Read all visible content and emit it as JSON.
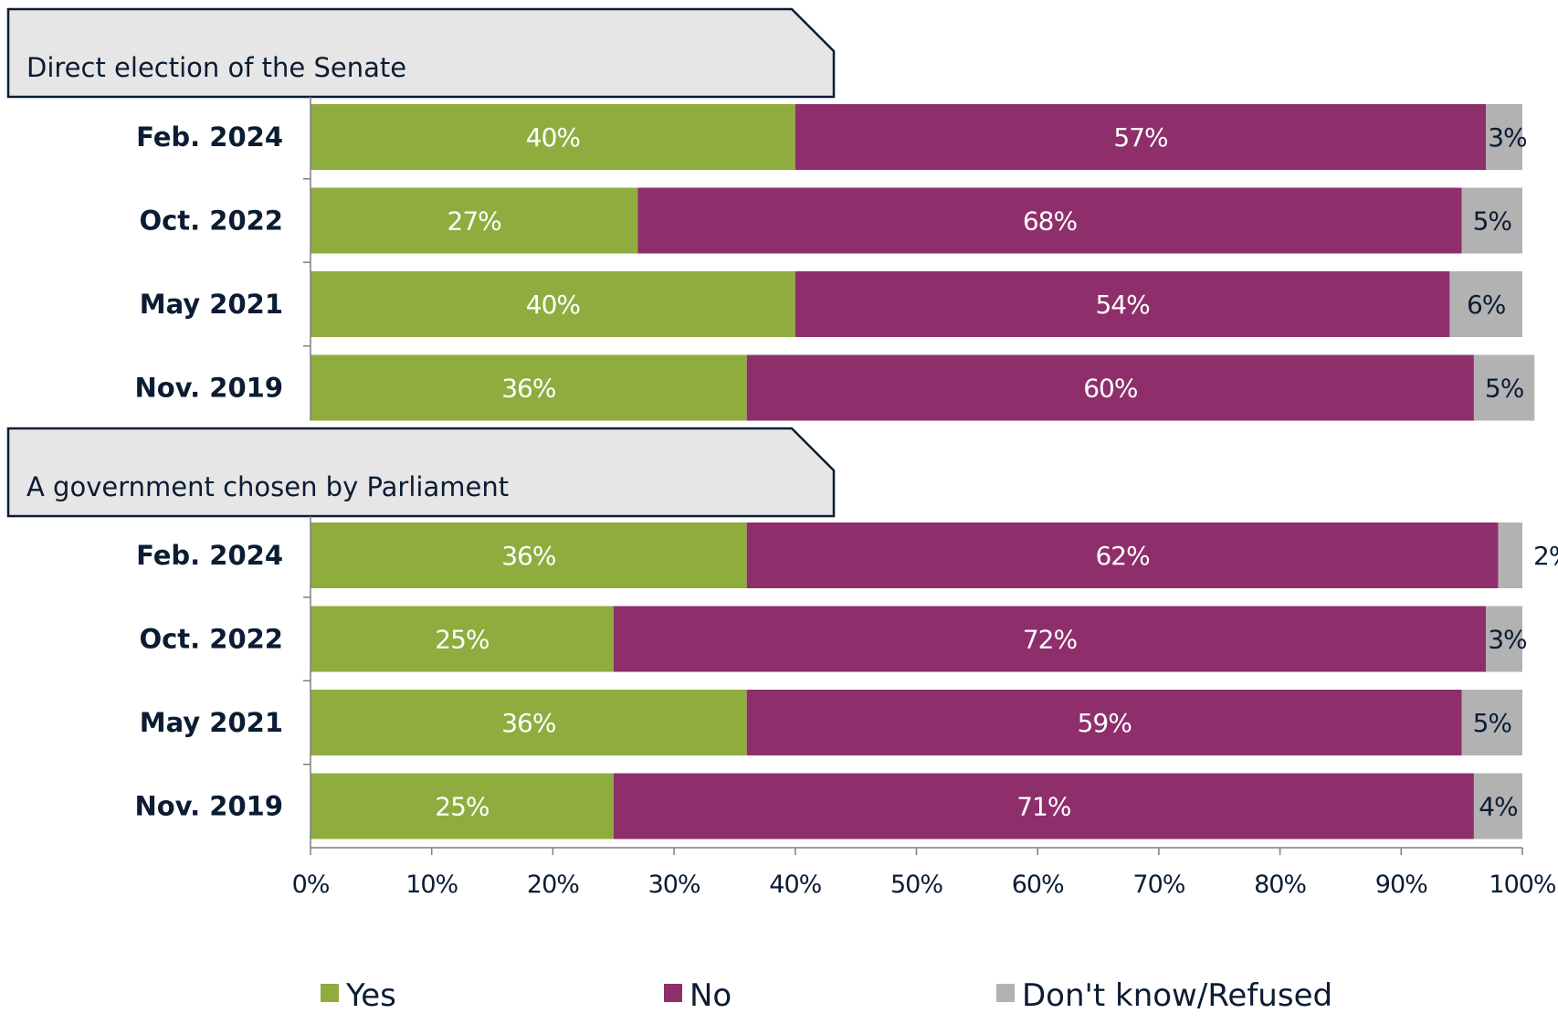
{
  "chart_data": {
    "type": "bar",
    "orientation": "horizontal",
    "stacked": true,
    "groups": [
      {
        "title": "Direct election of the Senate",
        "categories": [
          "Feb. 2024",
          "Oct. 2022",
          "May 2021",
          "Nov. 2019"
        ],
        "series": [
          {
            "name": "Yes",
            "values": [
              40,
              27,
              40,
              36
            ]
          },
          {
            "name": "No",
            "values": [
              57,
              68,
              54,
              60
            ]
          },
          {
            "name": "Don't know/Refused",
            "values": [
              3,
              5,
              6,
              5
            ]
          }
        ]
      },
      {
        "title": "A government chosen by Parliament",
        "categories": [
          "Feb. 2024",
          "Oct. 2022",
          "May 2021",
          "Nov. 2019"
        ],
        "series": [
          {
            "name": "Yes",
            "values": [
              36,
              25,
              36,
              25
            ]
          },
          {
            "name": "No",
            "values": [
              62,
              72,
              59,
              71
            ]
          },
          {
            "name": "Don't know/Refused",
            "values": [
              2,
              3,
              5,
              4
            ]
          }
        ]
      }
    ],
    "x_ticks": [
      "0%",
      "10%",
      "20%",
      "30%",
      "40%",
      "50%",
      "60%",
      "70%",
      "80%",
      "90%",
      "100%"
    ],
    "xlim": [
      0,
      100
    ],
    "value_suffix": "%",
    "legend": {
      "position": "bottom",
      "items": [
        "Yes",
        "No",
        "Don't know/Refused"
      ]
    },
    "colors": {
      "Yes": "#8fac3f",
      "No": "#8e2f6c",
      "Don't know/Refused": "#b2b2b2"
    },
    "label_colors": {
      "Yes": "#ffffff",
      "No": "#ffffff",
      "Don't know/Refused": "#0b1c33"
    },
    "grid": false
  }
}
